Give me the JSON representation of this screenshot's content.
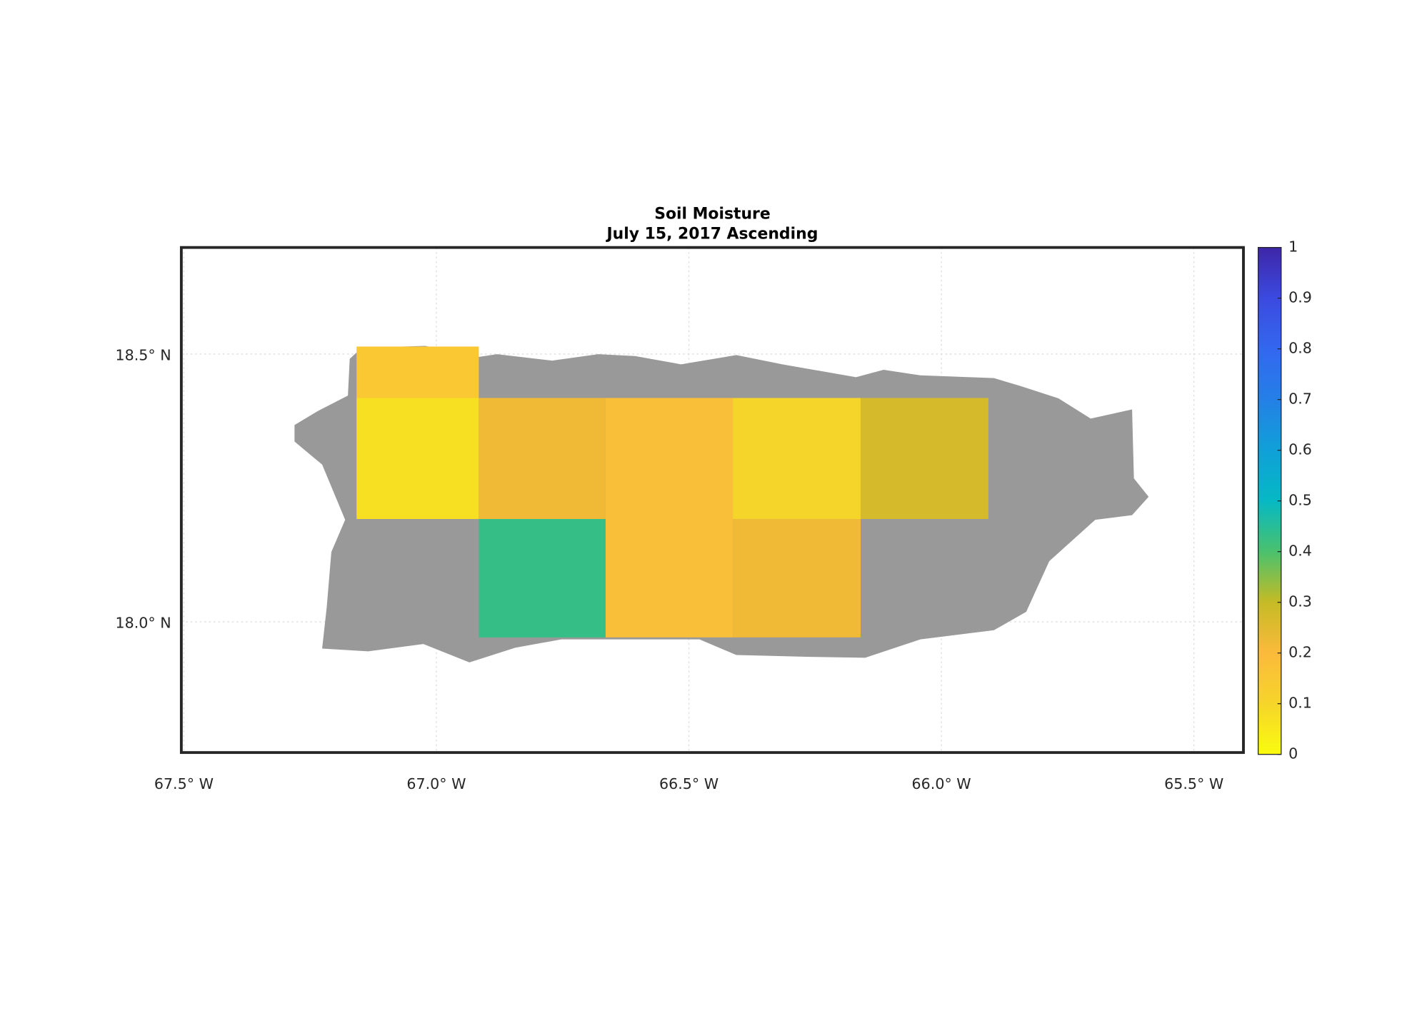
{
  "chart_data": {
    "type": "grid-map",
    "title": "Soil Moisture",
    "subtitle": "July 15, 2017 Ascending",
    "xlim": [
      -67.505,
      -65.402
    ],
    "ylim": [
      17.756,
      18.699
    ],
    "xticks": [
      {
        "value": -67.5,
        "label": "67.5° W"
      },
      {
        "value": -67.0,
        "label": "67.0° W"
      },
      {
        "value": -66.5,
        "label": "66.5° W"
      },
      {
        "value": -66.0,
        "label": "66.0° W"
      },
      {
        "value": -65.5,
        "label": "65.5° W"
      }
    ],
    "yticks": [
      {
        "value": 18.0,
        "label": "18.0° N"
      },
      {
        "value": 18.5,
        "label": "18.5° N"
      }
    ],
    "grid": true,
    "land_color": "#999999",
    "colormap": [
      "#f9fb0e",
      "#f6d52a",
      "#fbba3b",
      "#c5bb25",
      "#4ac16d",
      "#05b9c4",
      "#10a0d8",
      "#2480e6",
      "#3367f0",
      "#3b4ae0",
      "#3e26a8"
    ],
    "clim": [
      0,
      1
    ],
    "cticks": [
      0,
      0.1,
      0.2,
      0.3,
      0.4,
      0.5,
      0.6,
      0.7,
      0.8,
      0.9,
      1
    ],
    "cells": [
      {
        "lon": [
          -67.158,
          -66.916
        ],
        "lat": [
          18.418,
          18.514
        ],
        "value": 0.15
      },
      {
        "lon": [
          -67.158,
          -66.916
        ],
        "lat": [
          18.192,
          18.418
        ],
        "value": 0.07
      },
      {
        "lon": [
          -66.916,
          -66.665
        ],
        "lat": [
          18.192,
          18.418
        ],
        "value": 0.22
      },
      {
        "lon": [
          -66.665,
          -66.413
        ],
        "lat": [
          17.971,
          18.418
        ],
        "value": 0.18
      },
      {
        "lon": [
          -66.413,
          -66.16
        ],
        "lat": [
          18.192,
          18.418
        ],
        "value": 0.1
      },
      {
        "lon": [
          -66.16,
          -65.907
        ],
        "lat": [
          18.192,
          18.418
        ],
        "value": 0.27
      },
      {
        "lon": [
          -66.916,
          -66.665
        ],
        "lat": [
          17.971,
          18.192
        ],
        "value": 0.43
      },
      {
        "lon": [
          -66.413,
          -66.16
        ],
        "lat": [
          17.971,
          18.192
        ],
        "value": 0.22
      }
    ]
  }
}
